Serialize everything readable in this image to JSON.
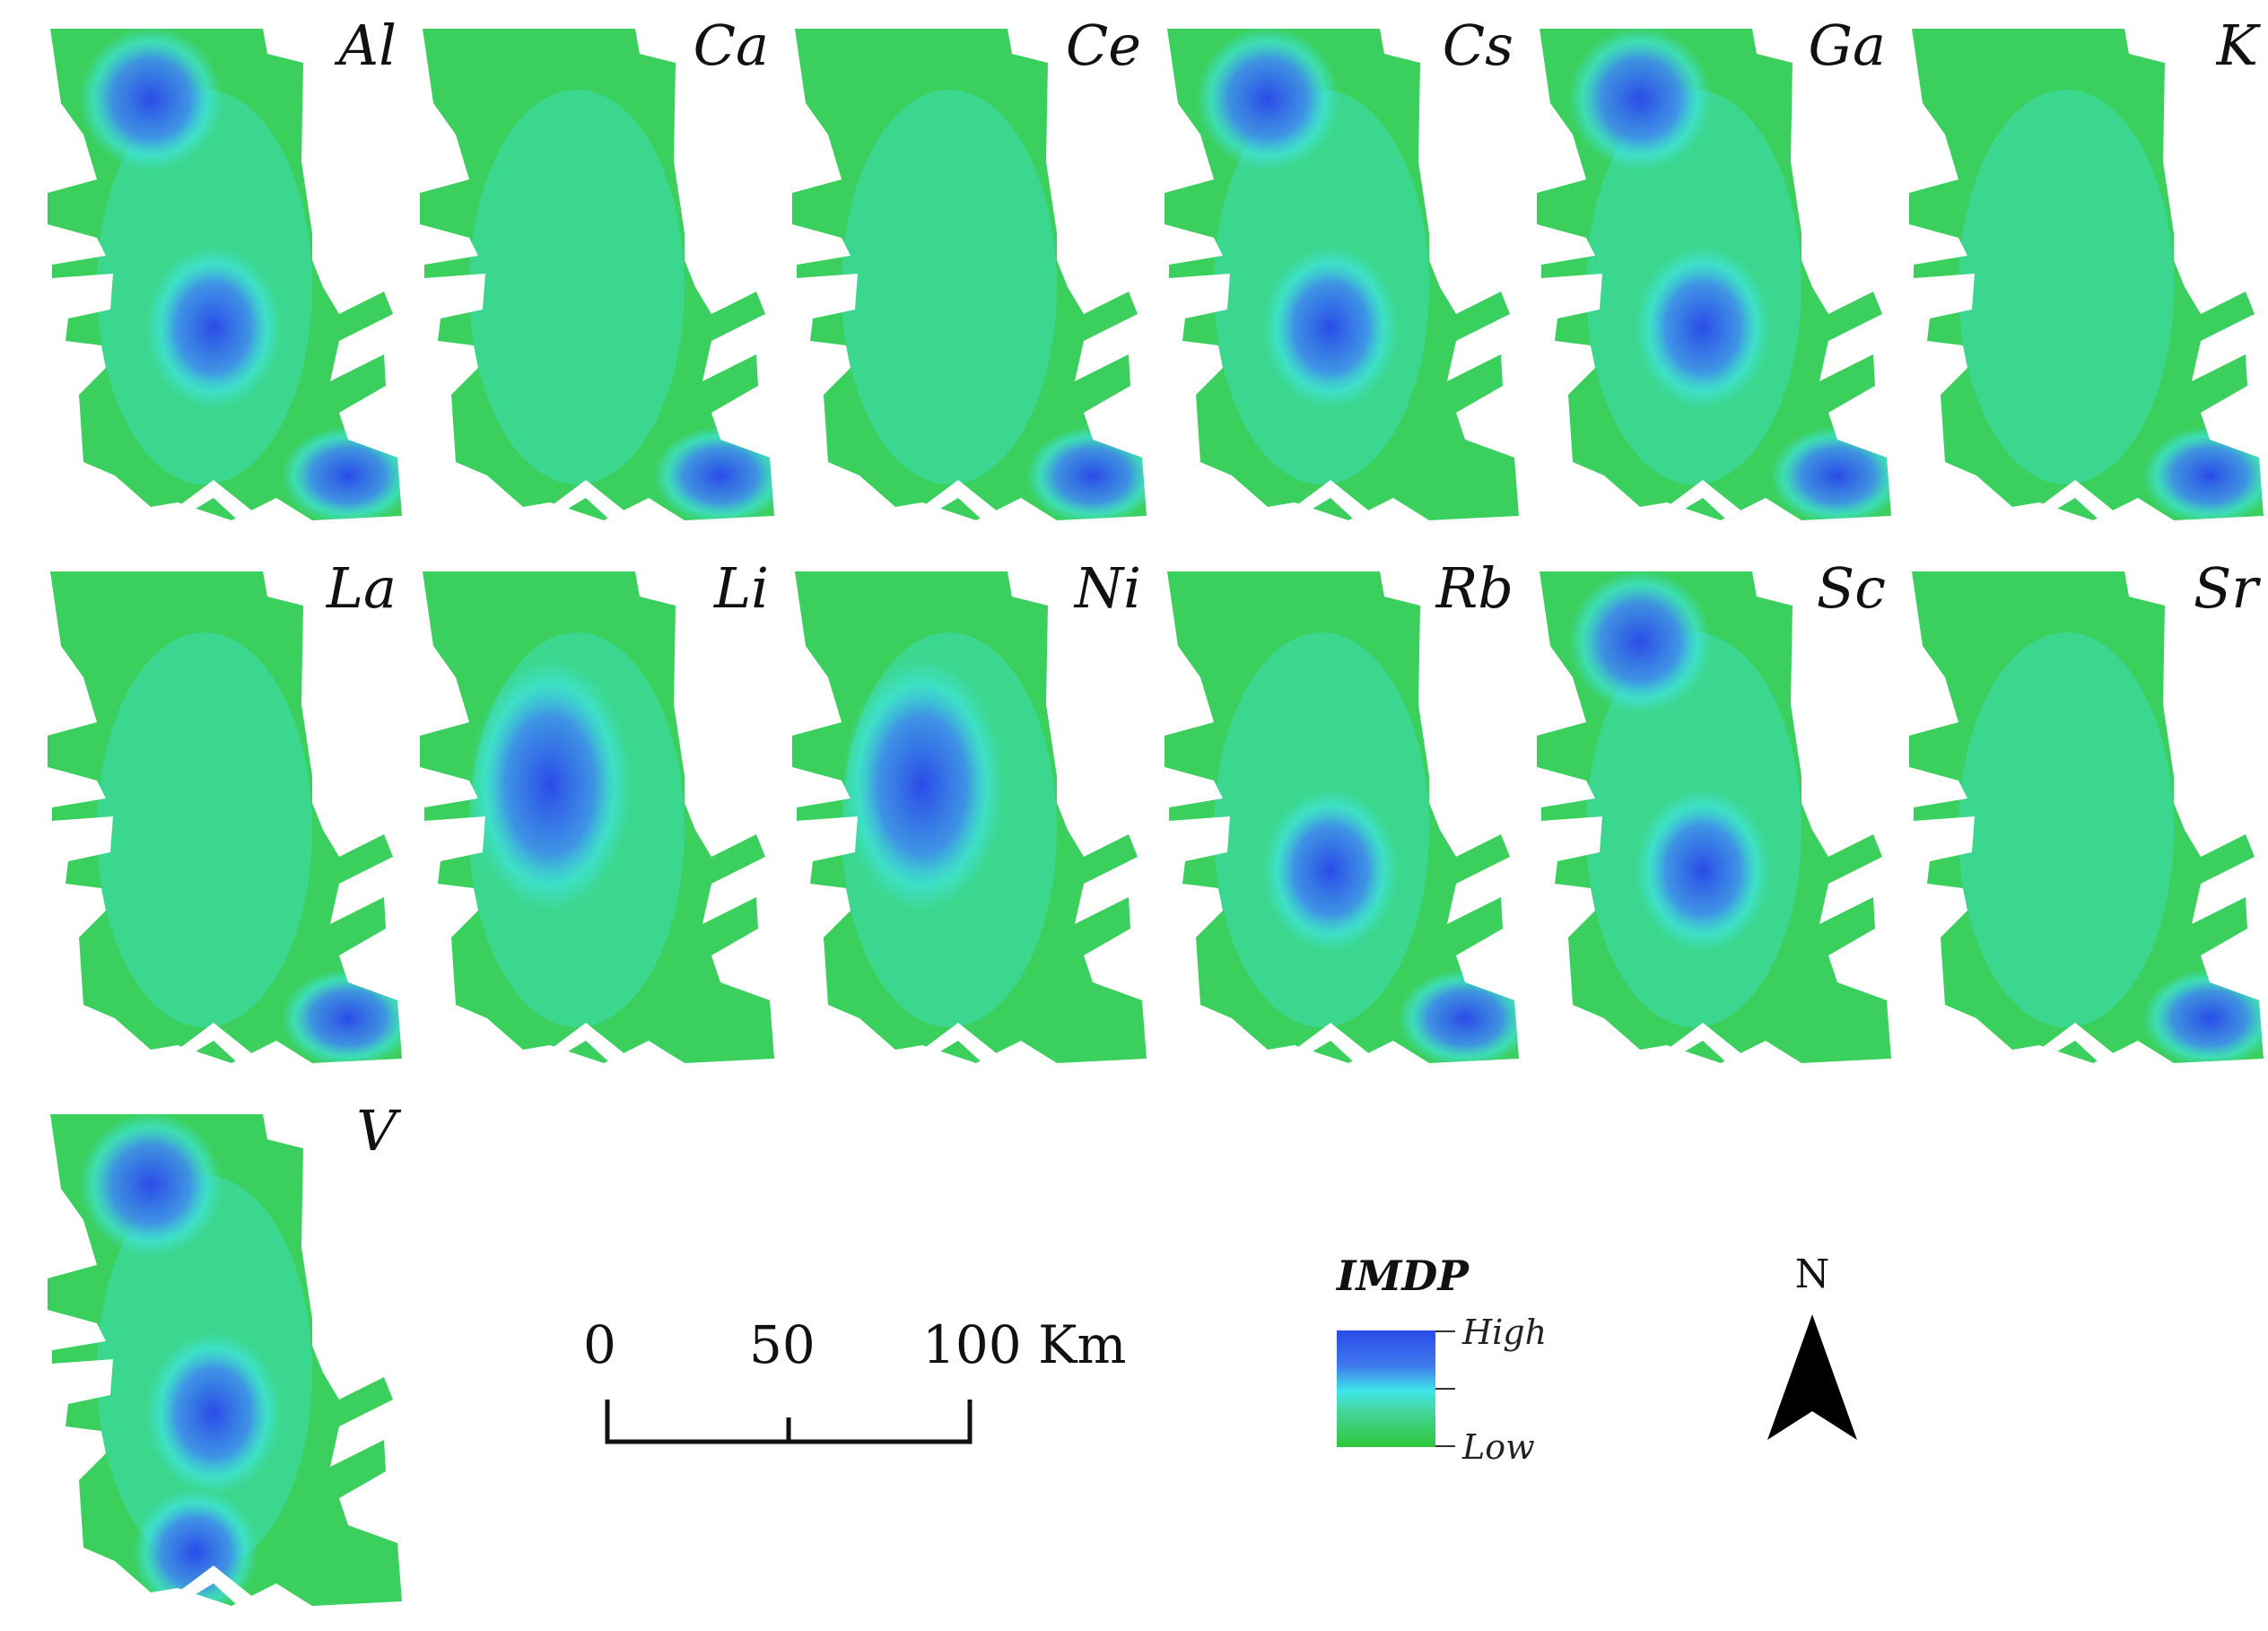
{
  "map": {
    "panels": [
      {
        "element": "Al",
        "hotspots": [
          "north",
          "middle",
          "southeast"
        ]
      },
      {
        "element": "Ca",
        "hotspots": [
          "southeast"
        ]
      },
      {
        "element": "Ce",
        "hotspots": [
          "southeast"
        ]
      },
      {
        "element": "Cs",
        "hotspots": [
          "north",
          "middle"
        ]
      },
      {
        "element": "Ga",
        "hotspots": [
          "north",
          "middle",
          "southeast"
        ]
      },
      {
        "element": "K",
        "hotspots": [
          "southeast"
        ]
      },
      {
        "element": "La",
        "hotspots": [
          "southeast"
        ]
      },
      {
        "element": "Li",
        "hotspots": [
          "west"
        ]
      },
      {
        "element": "Ni",
        "hotspots": [
          "west"
        ]
      },
      {
        "element": "Rb",
        "hotspots": [
          "middle",
          "southeast"
        ]
      },
      {
        "element": "Sc",
        "hotspots": [
          "north",
          "middle"
        ]
      },
      {
        "element": "Sr",
        "hotspots": [
          "southeast"
        ]
      },
      {
        "element": "V",
        "hotspots": [
          "north",
          "middle",
          "south"
        ]
      }
    ],
    "scale_bar": {
      "ticks": [
        "0",
        "50",
        "100 Km"
      ]
    },
    "legend": {
      "title": "IMDP",
      "high_label": "High",
      "low_label": "Low",
      "colors": {
        "high": "#2a4be8",
        "mid": "#3fe6ea",
        "low": "#2fc63a"
      }
    },
    "north_arrow": {
      "label": "N"
    }
  }
}
